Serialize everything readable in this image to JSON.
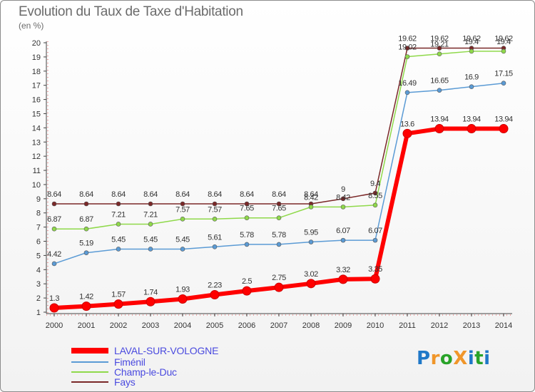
{
  "title": "Evolution du Taux de Taxe d'Habitation",
  "unit_label": "(en %)",
  "brand": {
    "text": "ProXiti",
    "letters": [
      "P",
      "r",
      "o",
      "X",
      "i",
      "t",
      "i"
    ],
    "colors": [
      "#1f78c8",
      "#f0962a",
      "#29a329",
      "#f0962a",
      "#1f78c8",
      "#29a329",
      "#1f78c8"
    ]
  },
  "chart_data": {
    "type": "line",
    "x": [
      "2000",
      "2001",
      "2002",
      "2003",
      "2004",
      "2005",
      "2006",
      "2007",
      "2008",
      "2009",
      "2010",
      "2011",
      "2012",
      "2013",
      "2014"
    ],
    "ylim": [
      1,
      20
    ],
    "yticks": [
      "1",
      "2",
      "3",
      "4",
      "5",
      "6",
      "7",
      "8",
      "9",
      "10",
      "11",
      "12",
      "13",
      "14",
      "15",
      "16",
      "17",
      "18",
      "19",
      "20"
    ],
    "grid": false,
    "legend_position": "bottom-left",
    "series": [
      {
        "name": "LAVAL-SUR-VOLOGNE",
        "color": "#ff0000",
        "width": 6,
        "marker": 6,
        "values": [
          1.3,
          1.42,
          1.57,
          1.74,
          1.93,
          2.23,
          2.5,
          2.75,
          3.02,
          3.32,
          3.35,
          13.6,
          13.94,
          13.94,
          13.94
        ],
        "labels": [
          "1.3",
          "1.42",
          "1.57",
          "1.74",
          "1.93",
          "2.23",
          "2.5",
          "2.75",
          "3.02",
          "3.32",
          "3.35",
          "13.6",
          "13.94",
          "13.94",
          "13.94"
        ]
      },
      {
        "name": "Fiménil",
        "color": "#5b9bd5",
        "width": 1.5,
        "marker": 3,
        "values": [
          4.42,
          5.19,
          5.45,
          5.45,
          5.45,
          5.61,
          5.78,
          5.78,
          5.95,
          6.07,
          6.07,
          16.49,
          16.65,
          16.9,
          17.15
        ],
        "labels": [
          "4.42",
          "5.19",
          "5.45",
          "5.45",
          "5.45",
          "5.61",
          "5.78",
          "5.78",
          "5.95",
          "6.07",
          "6.07",
          "16.49",
          "16.65",
          "16.9",
          "17.15"
        ]
      },
      {
        "name": "Champ-le-Duc",
        "color": "#8fd94a",
        "width": 1.5,
        "marker": 3,
        "values": [
          6.87,
          6.87,
          7.21,
          7.21,
          7.57,
          7.57,
          7.65,
          7.65,
          8.42,
          8.42,
          8.55,
          19.02,
          19.21,
          19.4,
          19.4
        ],
        "labels": [
          "6.87",
          "6.87",
          "7.21",
          "7.21",
          "7.57",
          "7.57",
          "7.65",
          "7.65",
          "8.42",
          "8.42",
          "8.55",
          "19.02",
          "19.21",
          "19.4",
          "19.4"
        ]
      },
      {
        "name": "Fays",
        "color": "#7a2828",
        "width": 1.5,
        "marker": 3,
        "values": [
          8.64,
          8.64,
          8.64,
          8.64,
          8.64,
          8.64,
          8.64,
          8.64,
          8.64,
          9,
          9.4,
          19.62,
          19.62,
          19.62,
          19.62
        ],
        "labels": [
          "8.64",
          "8.64",
          "8.64",
          "8.64",
          "8.64",
          "8.64",
          "8.64",
          "8.64",
          "8.64",
          "9",
          "9.4",
          "19.62",
          "19.62",
          "19.62",
          "19.62"
        ]
      }
    ]
  }
}
